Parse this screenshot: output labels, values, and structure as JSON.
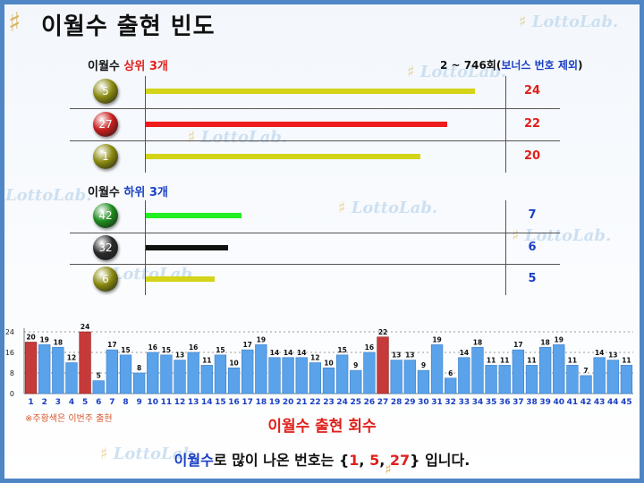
{
  "title": "이월수 출현 빈도",
  "watermark": "LottoLab.",
  "top3": {
    "heading_prefix": "이월수 ",
    "heading_highlight": "상위 3개",
    "range_note_prefix": "2 ~ 746회(",
    "range_note_highlight": "보너스 번호 제외",
    "range_note_suffix": ")",
    "items": [
      {
        "number": "5",
        "count": "24",
        "count_value": 24,
        "ball_color": "#8a8a10",
        "bar_color": "#d4d418"
      },
      {
        "number": "27",
        "count": "22",
        "count_value": 22,
        "ball_color": "#c81e1e",
        "bar_color": "#ee1c1c"
      },
      {
        "number": "1",
        "count": "20",
        "count_value": 20,
        "ball_color": "#8a8a10",
        "bar_color": "#d4d418"
      }
    ]
  },
  "bottom3": {
    "heading_prefix": "이월수 ",
    "heading_highlight": "하위 3개",
    "items": [
      {
        "number": "42",
        "count": "7",
        "count_value": 7,
        "ball_color": "#1e8c1e",
        "bar_color": "#22ee22"
      },
      {
        "number": "32",
        "count": "6",
        "count_value": 6,
        "ball_color": "#2a2a2a",
        "bar_color": "#111111"
      },
      {
        "number": "6",
        "count": "5",
        "count_value": 5,
        "ball_color": "#8a8a10",
        "bar_color": "#d4d418"
      }
    ]
  },
  "chart_data": {
    "type": "bar",
    "categories": [
      "1",
      "2",
      "3",
      "4",
      "5",
      "6",
      "7",
      "8",
      "9",
      "10",
      "11",
      "12",
      "13",
      "14",
      "15",
      "16",
      "17",
      "18",
      "19",
      "20",
      "21",
      "22",
      "23",
      "24",
      "25",
      "26",
      "27",
      "28",
      "29",
      "30",
      "31",
      "32",
      "33",
      "34",
      "35",
      "36",
      "37",
      "38",
      "39",
      "40",
      "41",
      "42",
      "43",
      "44",
      "45"
    ],
    "values": [
      20,
      19,
      18,
      12,
      24,
      5,
      17,
      15,
      8,
      16,
      15,
      13,
      16,
      11,
      15,
      10,
      17,
      19,
      14,
      14,
      14,
      12,
      10,
      15,
      9,
      16,
      22,
      13,
      13,
      9,
      19,
      6,
      14,
      18,
      11,
      11,
      17,
      11,
      18,
      19,
      11,
      7,
      14,
      13,
      11
    ],
    "highlight_categories": [
      "1",
      "5",
      "27"
    ],
    "yticks": [
      0,
      8,
      16,
      24
    ],
    "ylim": [
      0,
      26
    ],
    "xlabel": "이월수 출현 회수",
    "bar_color": "#5aa2ea",
    "highlight_color": "#c63a3a"
  },
  "chart_note": "※주황색은 이번주 출현",
  "conclusion": {
    "highlight": "이월수",
    "text1": "로 많이 나온 번호는 {",
    "n1": "1",
    "sep1": ", ",
    "n2": "5",
    "sep2": ", ",
    "n3": "27",
    "text2": "} 입니다."
  }
}
